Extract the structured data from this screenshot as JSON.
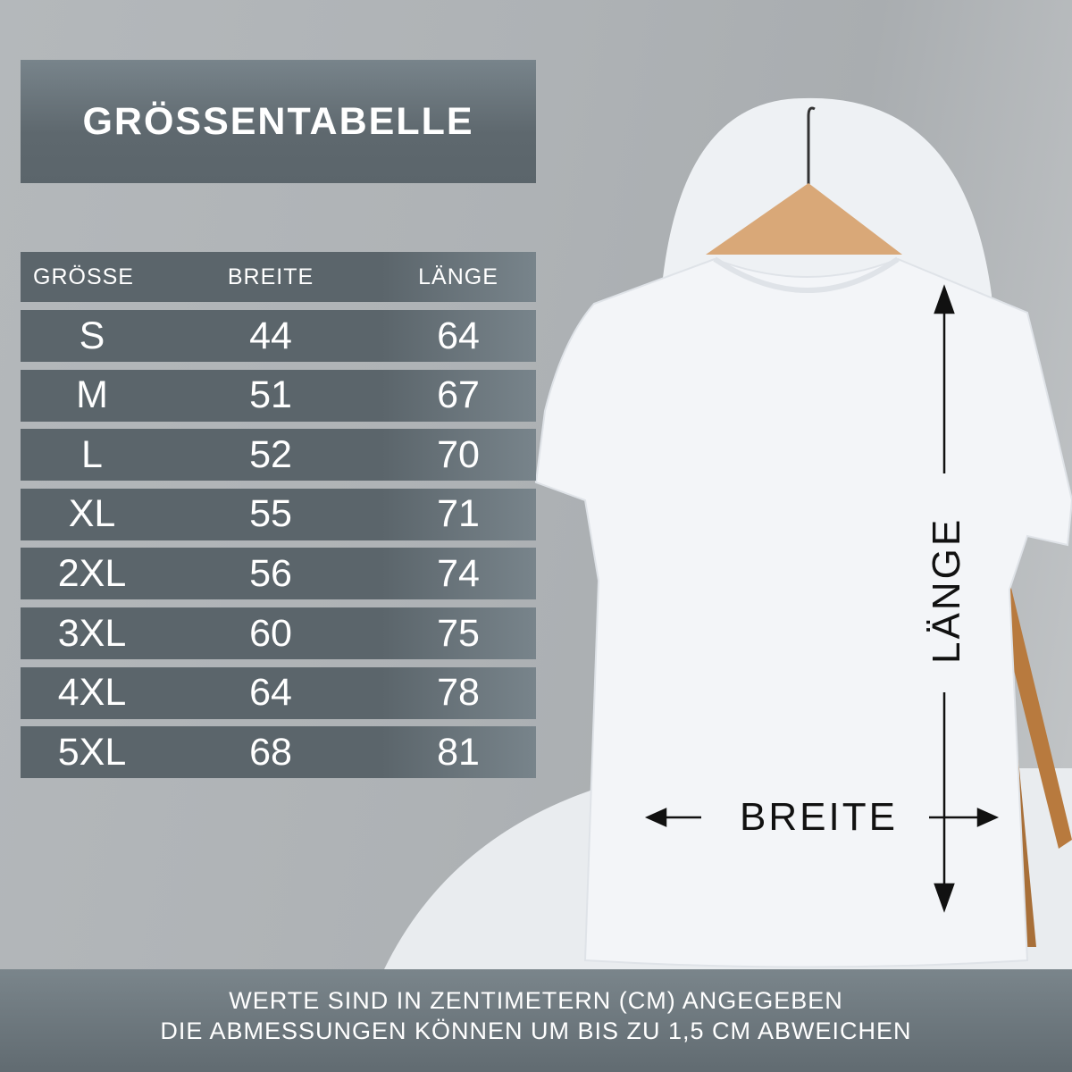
{
  "title": "GRÖSSENTABELLE",
  "table": {
    "headers": [
      "GRÖSSE",
      "BREITE",
      "LÄNGE"
    ],
    "rows": [
      [
        "S",
        "44",
        "64"
      ],
      [
        "M",
        "51",
        "67"
      ],
      [
        "L",
        "52",
        "70"
      ],
      [
        "XL",
        "55",
        "71"
      ],
      [
        "2XL",
        "56",
        "74"
      ],
      [
        "3XL",
        "60",
        "75"
      ],
      [
        "4XL",
        "64",
        "78"
      ],
      [
        "5XL",
        "68",
        "81"
      ]
    ]
  },
  "diagram": {
    "length_label": "LÄNGE",
    "width_label": "BREITE"
  },
  "footer": {
    "line1": "WERTE SIND IN ZENTIMETERN (CM) ANGEGEBEN",
    "line2": "DIE ABMESSUNGEN KÖNNEN UM BIS ZU 1,5 CM ABWEICHEN"
  },
  "colors": {
    "panel": "#5b656b",
    "text": "#ffffff",
    "arrow": "#111111"
  }
}
